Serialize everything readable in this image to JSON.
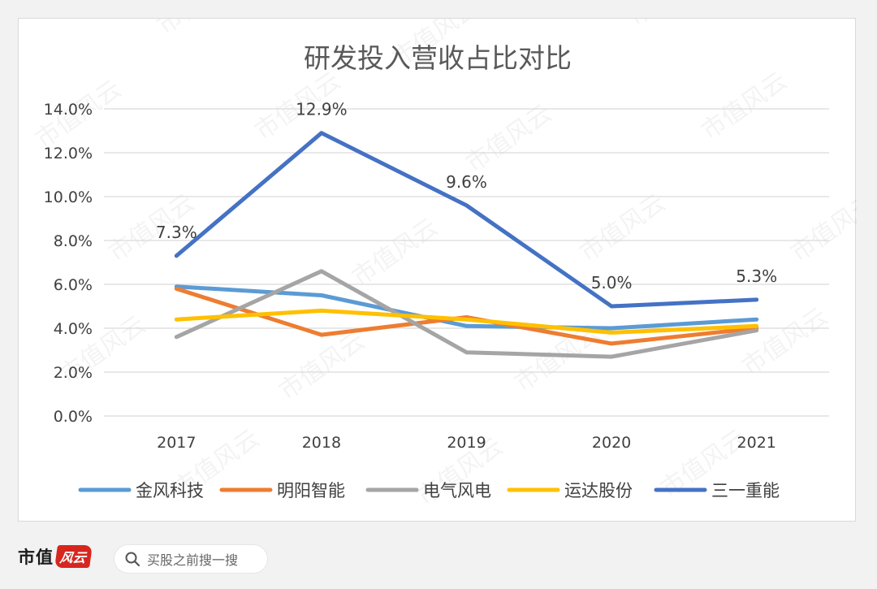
{
  "chart_data": {
    "type": "line",
    "title": "研发投入营收占比对比",
    "categories": [
      "2017",
      "2018",
      "2019",
      "2020",
      "2021"
    ],
    "y_ticks": [
      "0.0%",
      "2.0%",
      "4.0%",
      "6.0%",
      "8.0%",
      "10.0%",
      "12.0%",
      "14.0%"
    ],
    "ylim": [
      0,
      14
    ],
    "grid": true,
    "legend_position": "bottom",
    "series": [
      {
        "name": "金风科技",
        "color": "#5b9bd5",
        "values": [
          5.9,
          5.5,
          4.1,
          4.0,
          4.4
        ]
      },
      {
        "name": "明阳智能",
        "color": "#ed7d31",
        "values": [
          5.8,
          3.7,
          4.5,
          3.3,
          4.0
        ]
      },
      {
        "name": "电气风电",
        "color": "#a5a5a5",
        "values": [
          3.6,
          6.6,
          2.9,
          2.7,
          3.9
        ]
      },
      {
        "name": "运达股份",
        "color": "#ffc000",
        "values": [
          4.4,
          4.8,
          4.4,
          3.8,
          4.1
        ]
      },
      {
        "name": "三一重能",
        "color": "#4472c4",
        "values": [
          7.3,
          12.9,
          9.6,
          5.0,
          5.3
        ],
        "labels": [
          "7.3%",
          "12.9%",
          "9.6%",
          "5.0%",
          "5.3%"
        ]
      }
    ]
  },
  "watermark": "市值风云",
  "footer": {
    "brand": "市值",
    "brand_mark": "风云",
    "search_placeholder": "买股之前搜一搜"
  }
}
